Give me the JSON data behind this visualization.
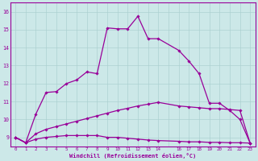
{
  "xlabel": "Windchill (Refroidissement éolien,°C)",
  "background_color": "#cce8e8",
  "line_color": "#990099",
  "xlim": [
    -0.5,
    23.5
  ],
  "ylim": [
    8.5,
    16.5
  ],
  "xtick_labels": [
    "0",
    "1",
    "2",
    "3",
    "4",
    "5",
    "6",
    "7",
    "8",
    "9",
    "10",
    "11",
    "12",
    "13",
    "14",
    "",
    "16",
    "17",
    "18",
    "19",
    "20",
    "21",
    "22",
    "23"
  ],
  "xtick_positions": [
    0,
    1,
    2,
    3,
    4,
    5,
    6,
    7,
    8,
    9,
    10,
    11,
    12,
    13,
    14,
    15,
    16,
    17,
    18,
    19,
    20,
    21,
    22,
    23
  ],
  "ytick_labels": [
    "9",
    "10",
    "11",
    "12",
    "13",
    "14",
    "15",
    "16"
  ],
  "ytick_positions": [
    9,
    10,
    11,
    12,
    13,
    14,
    15,
    16
  ],
  "s1_x": [
    0,
    1,
    2,
    3,
    4,
    5,
    6,
    7,
    8,
    9,
    10,
    11,
    12,
    13,
    14,
    16,
    17,
    18,
    19,
    20,
    21,
    22,
    23
  ],
  "s1_y": [
    9.0,
    8.7,
    8.9,
    9.0,
    9.05,
    9.1,
    9.1,
    9.1,
    9.1,
    9.0,
    9.0,
    8.95,
    8.9,
    8.85,
    8.82,
    8.78,
    8.75,
    8.75,
    8.72,
    8.72,
    8.7,
    8.7,
    8.68
  ],
  "s2_x": [
    0,
    1,
    2,
    3,
    4,
    5,
    6,
    7,
    8,
    9,
    10,
    11,
    12,
    13,
    14,
    16,
    17,
    18,
    19,
    20,
    21,
    22,
    23
  ],
  "s2_y": [
    9.0,
    8.7,
    9.2,
    9.45,
    9.6,
    9.75,
    9.9,
    10.05,
    10.2,
    10.35,
    10.5,
    10.62,
    10.75,
    10.85,
    10.95,
    10.75,
    10.7,
    10.65,
    10.6,
    10.6,
    10.55,
    10.5,
    8.68
  ],
  "s3_x": [
    0,
    1,
    2,
    3,
    4,
    5,
    6,
    7,
    8,
    9,
    10,
    11,
    12,
    13,
    14,
    16,
    17,
    18,
    19,
    20,
    21,
    22,
    23
  ],
  "s3_y": [
    9.0,
    8.7,
    10.3,
    11.5,
    11.55,
    12.0,
    12.2,
    12.65,
    12.55,
    15.1,
    15.05,
    15.05,
    15.75,
    14.5,
    14.5,
    13.85,
    13.25,
    12.55,
    10.9,
    10.9,
    10.5,
    10.0,
    8.68
  ]
}
